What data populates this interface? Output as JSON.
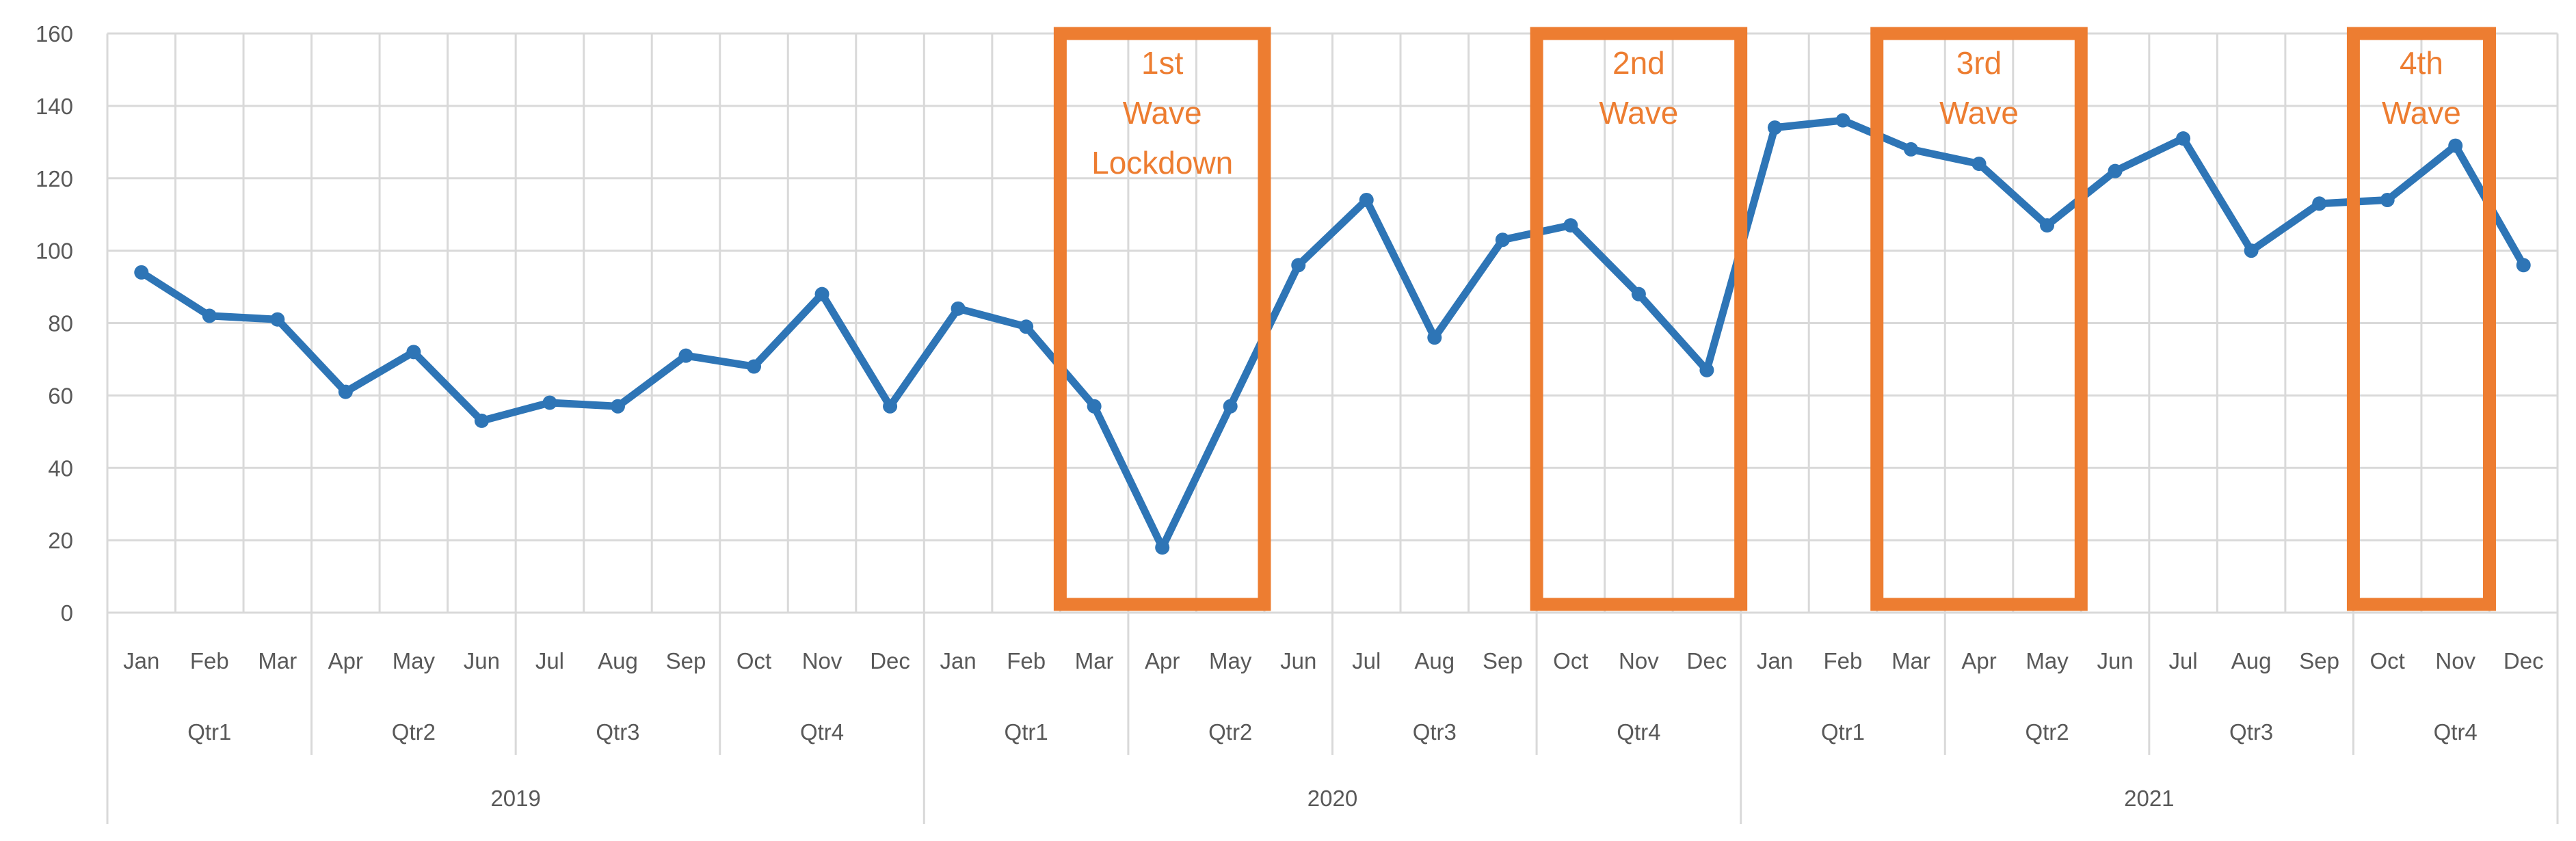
{
  "chart_data": {
    "type": "line",
    "title": "",
    "ylabel": "",
    "xlabel": "",
    "ylim": [
      0,
      160
    ],
    "ytick_step": 20,
    "yticks": [
      "0",
      "20",
      "40",
      "60",
      "80",
      "100",
      "120",
      "140",
      "160"
    ],
    "grid": true,
    "legend_position": "none",
    "x_axis_levels": [
      "month",
      "quarter",
      "year"
    ],
    "years": [
      {
        "label": "2019",
        "quarters": [
          {
            "label": "Qtr1",
            "months": [
              "Jan",
              "Feb",
              "Mar"
            ]
          },
          {
            "label": "Qtr2",
            "months": [
              "Apr",
              "May",
              "Jun"
            ]
          },
          {
            "label": "Qtr3",
            "months": [
              "Jul",
              "Aug",
              "Sep"
            ]
          },
          {
            "label": "Qtr4",
            "months": [
              "Oct",
              "Nov",
              "Dec"
            ]
          }
        ]
      },
      {
        "label": "2020",
        "quarters": [
          {
            "label": "Qtr1",
            "months": [
              "Jan",
              "Feb",
              "Mar"
            ]
          },
          {
            "label": "Qtr2",
            "months": [
              "Apr",
              "May",
              "Jun"
            ]
          },
          {
            "label": "Qtr3",
            "months": [
              "Jul",
              "Aug",
              "Sep"
            ]
          },
          {
            "label": "Qtr4",
            "months": [
              "Oct",
              "Nov",
              "Dec"
            ]
          }
        ]
      },
      {
        "label": "2021",
        "quarters": [
          {
            "label": "Qtr1",
            "months": [
              "Jan",
              "Feb",
              "Mar"
            ]
          },
          {
            "label": "Qtr2",
            "months": [
              "Apr",
              "May",
              "Jun"
            ]
          },
          {
            "label": "Qtr3",
            "months": [
              "Jul",
              "Aug",
              "Sep"
            ]
          },
          {
            "label": "Qtr4",
            "months": [
              "Oct",
              "Nov",
              "Dec"
            ]
          }
        ]
      }
    ],
    "series": [
      {
        "name": "",
        "color": "#2E75B6",
        "marker": "circle",
        "values": [
          94,
          82,
          81,
          61,
          72,
          53,
          58,
          57,
          71,
          68,
          88,
          57,
          84,
          79,
          57,
          18,
          57,
          96,
          114,
          76,
          103,
          107,
          88,
          67,
          134,
          136,
          128,
          124,
          107,
          122,
          131,
          100,
          113,
          114,
          129,
          96
        ]
      }
    ],
    "annotations": [
      {
        "lines": [
          "1st",
          "Wave",
          "Lockdown"
        ],
        "start_index": 14,
        "end_index": 17,
        "color": "#ED7D31"
      },
      {
        "lines": [
          "2nd",
          "Wave"
        ],
        "start_index": 21,
        "end_index": 24,
        "color": "#ED7D31"
      },
      {
        "lines": [
          "3rd",
          "Wave"
        ],
        "start_index": 26,
        "end_index": 29,
        "color": "#ED7D31"
      },
      {
        "lines": [
          "4th",
          "Wave"
        ],
        "start_index": 33,
        "end_index": 35,
        "color": "#ED7D31"
      }
    ]
  },
  "style": {
    "background": "#FFFFFF",
    "gridline_color": "#D9D9D9",
    "axis_label_color": "#595959",
    "line_color": "#2E75B6",
    "annotation_color": "#ED7D31"
  }
}
